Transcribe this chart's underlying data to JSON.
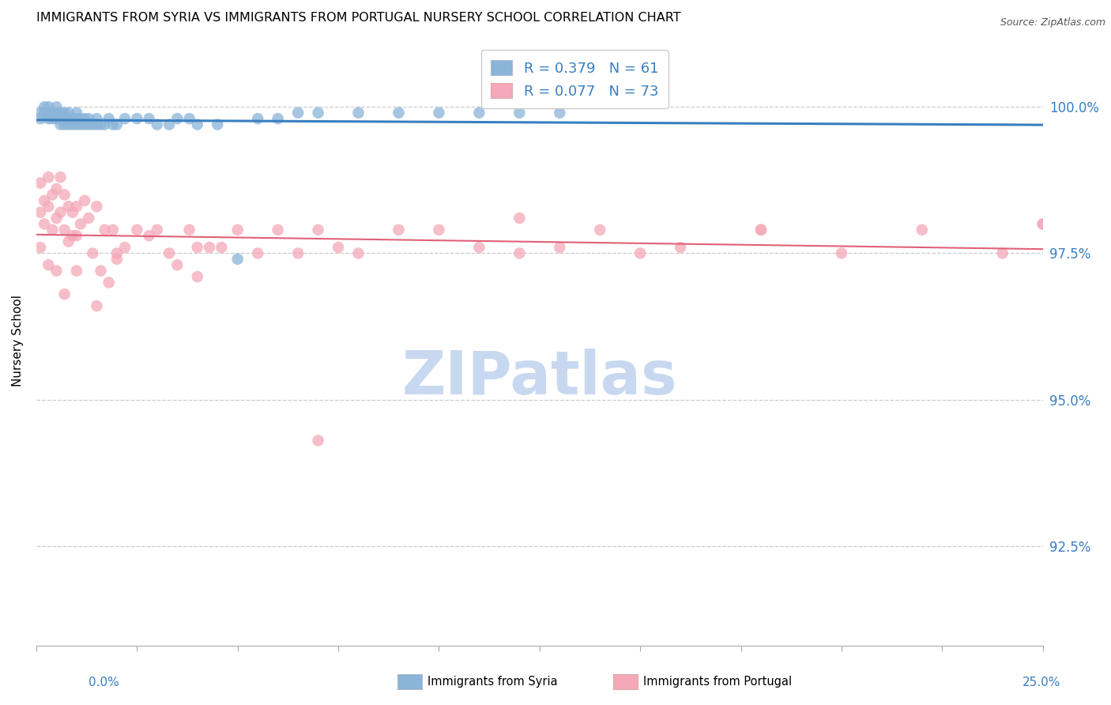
{
  "title": "IMMIGRANTS FROM SYRIA VS IMMIGRANTS FROM PORTUGAL NURSERY SCHOOL CORRELATION CHART",
  "source": "Source: ZipAtlas.com",
  "ylabel": "Nursery School",
  "ytick_labels": [
    "100.0%",
    "97.5%",
    "95.0%",
    "92.5%"
  ],
  "ytick_values": [
    1.0,
    0.975,
    0.95,
    0.925
  ],
  "xmin": 0.0,
  "xmax": 0.25,
  "ymin": 0.908,
  "ymax": 1.012,
  "color_syria": "#8ab4d8",
  "color_portugal": "#f4a8b8",
  "color_trendline_syria": "#3a7fc1",
  "color_trendline_portugal": "#e0607a",
  "color_tick_labels": "#3a7fc1",
  "watermark_color": "#c8d8f0",
  "legend_label_color": "#3a7fc1",
  "syria_x": [
    0.001,
    0.001,
    0.002,
    0.002,
    0.003,
    0.003,
    0.003,
    0.004,
    0.004,
    0.005,
    0.005,
    0.005,
    0.006,
    0.006,
    0.006,
    0.006,
    0.007,
    0.007,
    0.007,
    0.008,
    0.008,
    0.008,
    0.009,
    0.009,
    0.01,
    0.01,
    0.01,
    0.011,
    0.011,
    0.012,
    0.012,
    0.013,
    0.013,
    0.014,
    0.015,
    0.015,
    0.016,
    0.017,
    0.018,
    0.019,
    0.02,
    0.022,
    0.025,
    0.028,
    0.03,
    0.033,
    0.035,
    0.038,
    0.04,
    0.045,
    0.05,
    0.055,
    0.06,
    0.065,
    0.07,
    0.08,
    0.09,
    0.1,
    0.11,
    0.12,
    0.13
  ],
  "syria_y": [
    0.999,
    0.998,
    1.0,
    0.999,
    1.0,
    0.999,
    0.998,
    0.999,
    0.998,
    1.0,
    0.999,
    0.998,
    0.999,
    0.998,
    0.997,
    0.998,
    0.999,
    0.998,
    0.997,
    0.999,
    0.998,
    0.997,
    0.998,
    0.997,
    0.999,
    0.998,
    0.997,
    0.998,
    0.997,
    0.998,
    0.997,
    0.998,
    0.997,
    0.997,
    0.998,
    0.997,
    0.997,
    0.997,
    0.998,
    0.997,
    0.997,
    0.998,
    0.998,
    0.998,
    0.997,
    0.997,
    0.998,
    0.998,
    0.997,
    0.997,
    0.974,
    0.998,
    0.998,
    0.999,
    0.999,
    0.999,
    0.999,
    0.999,
    0.999,
    0.999,
    0.999
  ],
  "portugal_x": [
    0.001,
    0.001,
    0.002,
    0.002,
    0.003,
    0.003,
    0.004,
    0.004,
    0.005,
    0.005,
    0.006,
    0.006,
    0.007,
    0.007,
    0.008,
    0.008,
    0.009,
    0.009,
    0.01,
    0.01,
    0.011,
    0.012,
    0.013,
    0.014,
    0.015,
    0.016,
    0.017,
    0.018,
    0.019,
    0.02,
    0.022,
    0.025,
    0.028,
    0.03,
    0.033,
    0.035,
    0.038,
    0.04,
    0.043,
    0.046,
    0.05,
    0.055,
    0.06,
    0.065,
    0.07,
    0.075,
    0.08,
    0.09,
    0.1,
    0.11,
    0.12,
    0.13,
    0.14,
    0.15,
    0.16,
    0.18,
    0.2,
    0.22,
    0.24,
    0.001,
    0.003,
    0.005,
    0.007,
    0.01,
    0.015,
    0.02,
    0.04,
    0.07,
    0.12,
    0.18,
    0.25,
    0.25
  ],
  "portugal_y": [
    0.987,
    0.982,
    0.984,
    0.98,
    0.988,
    0.983,
    0.985,
    0.979,
    0.986,
    0.981,
    0.988,
    0.982,
    0.985,
    0.979,
    0.983,
    0.977,
    0.982,
    0.978,
    0.983,
    0.978,
    0.98,
    0.984,
    0.981,
    0.975,
    0.983,
    0.972,
    0.979,
    0.97,
    0.979,
    0.974,
    0.976,
    0.979,
    0.978,
    0.979,
    0.975,
    0.973,
    0.979,
    0.976,
    0.976,
    0.976,
    0.979,
    0.975,
    0.979,
    0.975,
    0.979,
    0.976,
    0.975,
    0.979,
    0.979,
    0.976,
    0.981,
    0.976,
    0.979,
    0.975,
    0.976,
    0.979,
    0.975,
    0.979,
    0.975,
    0.976,
    0.973,
    0.972,
    0.968,
    0.972,
    0.966,
    0.975,
    0.971,
    0.943,
    0.975,
    0.979,
    0.98,
    0.98
  ]
}
